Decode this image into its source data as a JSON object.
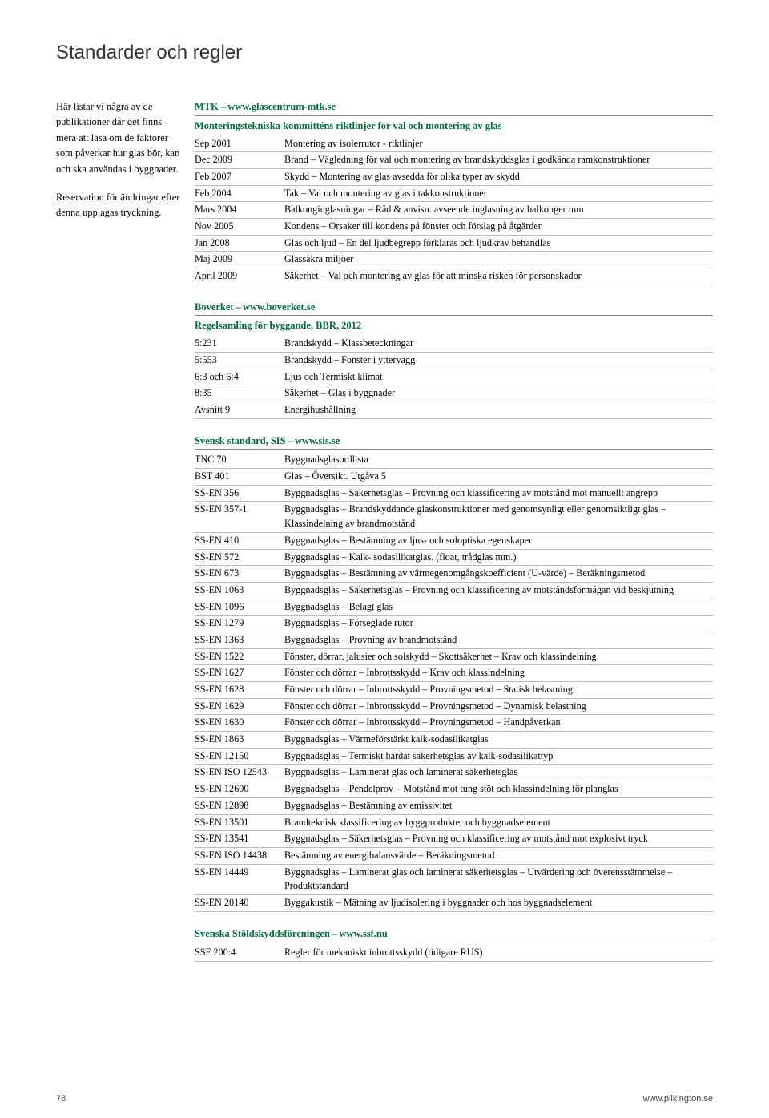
{
  "title": "Standarder och regler",
  "sidebar": {
    "p1": "Här listar vi några av de publikationer där det finns mera att läsa om de faktorer som påverkar hur glas bör, kan och ska användas i byggnader.",
    "p2": "Reservation för ändringar efter denna upplagas tryckning."
  },
  "sections": [
    {
      "headerA": "MTK –",
      "headerB": "www.glascentrum-mtk.se",
      "subtitle": "Monteringstekniska kommitténs riktlinjer för val och montering av glas",
      "rows": [
        [
          "Sep 2001",
          "Montering av isolerrutor - riktlinjer"
        ],
        [
          "Dec 2009",
          "Brand – Vägledning för val och montering av brandskyddsglas i godkända ramkonstruktioner"
        ],
        [
          "Feb 2007",
          "Skydd – Montering av glas avsedda för olika typer av skydd"
        ],
        [
          "Feb 2004",
          "Tak – Val och montering av glas i takkonstruktioner"
        ],
        [
          "Mars 2004",
          "Balkonginglasningar – Råd & anvisn. avseende inglasning av balkonger mm"
        ],
        [
          "Nov 2005",
          "Kondens – Orsaker till kondens på fönster och förslag på åtgärder"
        ],
        [
          "Jan 2008",
          "Glas och ljud – En del ljudbegrepp förklaras och ljudkrav behandlas"
        ],
        [
          "Maj 2009",
          "Glassäkra miljöer"
        ],
        [
          "April 2009",
          "Säkerhet – Val och montering av glas för att minska risken för personskador"
        ]
      ]
    },
    {
      "headerA": "Boverket –",
      "headerB": "www.boverket.se",
      "subtitle": "Regelsamling för byggande, BBR, 2012",
      "rows": [
        [
          "5:231",
          "Brandskydd – Klassbeteckningar"
        ],
        [
          "5:553",
          "Brandskydd – Fönster i yttervägg"
        ],
        [
          "6:3 och 6:4",
          "Ljus och Termiskt klimat"
        ],
        [
          "8:35",
          "Säkerhet – Glas i byggnader"
        ],
        [
          "Avsnitt 9",
          "Energihushållning"
        ]
      ]
    },
    {
      "headerA": "Svensk standard, SIS –",
      "headerB": "www.sis.se",
      "subtitle": "",
      "rows": [
        [
          "TNC 70",
          "Byggnadsglasordlista"
        ],
        [
          "BST 401",
          "Glas – Översikt. Utgåva 5"
        ],
        [
          "SS-EN 356",
          "Byggnadsglas – Säkerhetsglas – Provning och klassificering av motstånd mot manuellt angrepp"
        ],
        [
          "SS-EN 357-1",
          "Byggnadsglas – Brandskyddande glaskonstruktioner med genomsynligt eller genomsiktligt glas – Klassindelning av brandmotstånd"
        ],
        [
          "SS-EN 410",
          "Byggnadsglas – Bestämning av ljus- och soloptiska egenskaper"
        ],
        [
          "SS-EN 572",
          "Byggnadsglas – Kalk- sodasilikatglas. (float, trådglas mm.)"
        ],
        [
          "SS-EN 673",
          "Byggnadsglas – Bestämning av värmegenomgångskoefficient (U-värde) – Beräkningsmetod"
        ],
        [
          "SS-EN 1063",
          "Byggnadsglas – Säkerhetsglas – Provning och klassificering av motståndsförmågan vid beskjutning"
        ],
        [
          "SS-EN 1096",
          "Byggnadsglas – Belagt glas"
        ],
        [
          "SS-EN 1279",
          "Byggnadsglas – Förseglade rutor"
        ],
        [
          "SS-EN 1363",
          "Byggnadsglas – Provning av brandmotstånd"
        ],
        [
          "SS-EN 1522",
          "Fönster, dörrar, jalusier och solskydd – Skottsäkerhet – Krav och klassindelning"
        ],
        [
          "SS-EN 1627",
          "Fönster och dörrar – Inbrottsskydd – Krav och klassindelning"
        ],
        [
          "SS-EN 1628",
          "Fönster och dörrar – Inbrottsskydd – Provningsmetod – Statisk belastning"
        ],
        [
          "SS-EN 1629",
          "Fönster och dörrar – Inbrottsskydd – Provningsmetod – Dynamisk belastning"
        ],
        [
          "SS-EN 1630",
          "Fönster och dörrar – Inbrottsskydd – Provningsmetod – Handpåverkan"
        ],
        [
          "SS-EN 1863",
          "Byggnadsglas – Värmeförstärkt kalk-sodasilikatglas"
        ],
        [
          "SS-EN 12150",
          "Byggnadsglas – Termiskt härdat säkerhetsglas av kalk-sodasilikattyp"
        ],
        [
          "SS-EN ISO 12543",
          "Byggnadsglas – Laminerat glas och laminerat säkerhetsglas"
        ],
        [
          "SS-EN 12600",
          "Byggnadsglas – Pendelprov – Motstånd mot tung stöt och klassindelning för planglas"
        ],
        [
          "SS-EN 12898",
          "Byggnadsglas – Bestämning av emissivitet"
        ],
        [
          "SS-EN 13501",
          "Brandteknisk klassificering av byggprodukter och byggnadselement"
        ],
        [
          "SS-EN 13541",
          "Byggnadsglas – Säkerhetsglas – Provning och klassificering av motstånd mot explosivt tryck"
        ],
        [
          "SS-EN ISO 14438",
          "Bestämning av energibalansvärde – Beräkningsmetod"
        ],
        [
          "SS-EN 14449",
          "Byggnadsglas – Laminerat glas och laminerat säkerhetsglas – Utvärdering och överensstämmelse – Produktstandard"
        ],
        [
          "SS-EN 20140",
          "Byggakustik – Mätning av ljudisolering i byggnader och hos byggnadselement"
        ]
      ]
    },
    {
      "headerA": "Svenska Stöldskyddsföreningen –",
      "headerB": "www.ssf.nu",
      "subtitle": "",
      "rows": [
        [
          "SSF 200:4",
          "Regler för mekaniskt inbrottsskydd (tidigare RUS)"
        ]
      ]
    }
  ],
  "footer": {
    "page": "78",
    "site": "www.pilkington.se"
  }
}
